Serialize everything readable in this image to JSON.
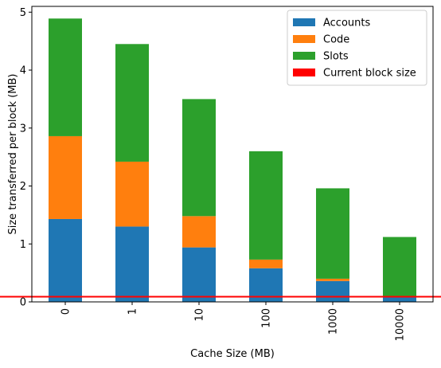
{
  "chart_data": {
    "type": "bar",
    "stacked": true,
    "categories": [
      "0",
      "1",
      "10",
      "100",
      "1000",
      "10000"
    ],
    "series": [
      {
        "name": "Accounts",
        "color": "#1f77b4",
        "values": [
          1.43,
          1.3,
          0.94,
          0.58,
          0.36,
          0.08
        ]
      },
      {
        "name": "Code",
        "color": "#ff7f0e",
        "values": [
          1.43,
          1.12,
          0.54,
          0.15,
          0.04,
          0.02
        ]
      },
      {
        "name": "Slots",
        "color": "#2ca02c",
        "values": [
          2.03,
          2.03,
          2.02,
          1.87,
          1.56,
          1.02
        ]
      }
    ],
    "reference_line": {
      "name": "Current block size",
      "color": "#ff0000",
      "value": 0.09
    },
    "xlabel": "Cache Size (MB)",
    "ylabel": "Size transferred per block (MB)",
    "ylim": [
      0,
      5.1
    ],
    "yticks": [
      0,
      1,
      2,
      3,
      4,
      5
    ],
    "grid": false,
    "legend_position": "top-right"
  }
}
